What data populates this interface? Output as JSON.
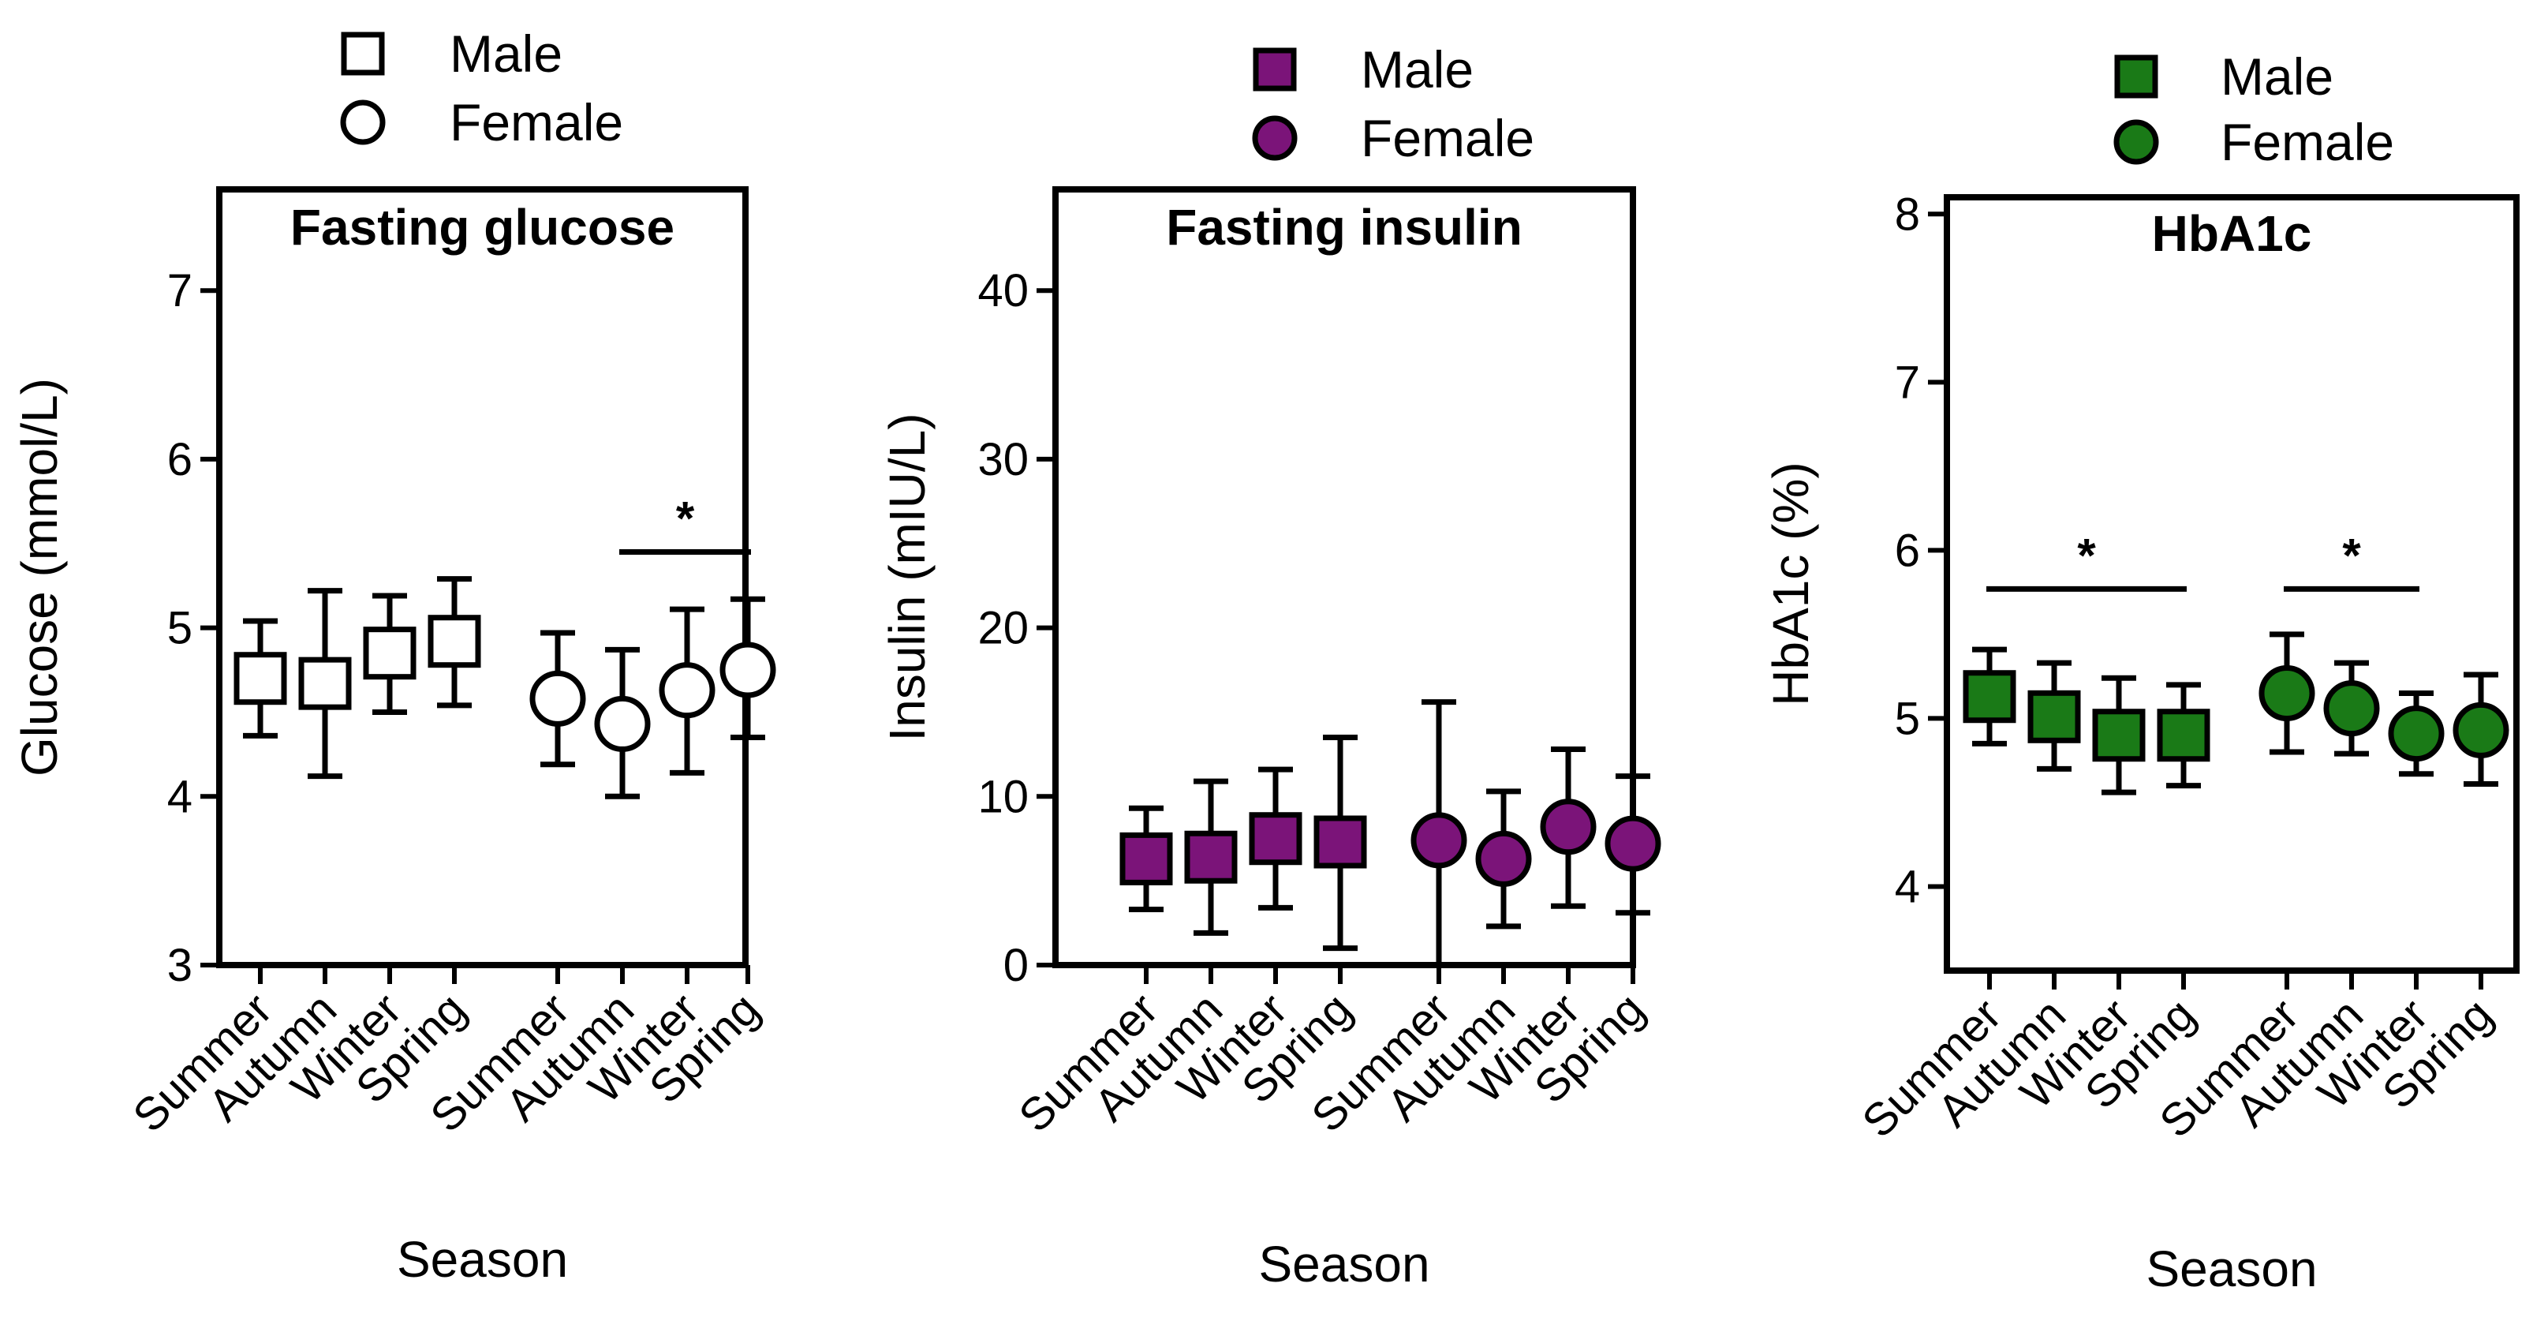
{
  "chart_data": [
    {
      "type": "scatter",
      "title": "Fasting glucose",
      "xlabel": "Season",
      "ylabel": "Glucose (mmol/L)",
      "ylim": [
        3,
        7.6
      ],
      "yticks": [
        3,
        4,
        5,
        6,
        7
      ],
      "colors": {
        "fill": "#ffffff",
        "stroke": "#000000"
      },
      "legend": {
        "position": "top",
        "entries": [
          "Male",
          "Female"
        ]
      },
      "categories": [
        "Summer",
        "Autumn",
        "Winter",
        "Spring",
        "Summer",
        "Autumn",
        "Winter",
        "Spring"
      ],
      "series": [
        {
          "name": "Male",
          "marker": "square",
          "mean": [
            4.7,
            4.67,
            4.85,
            4.92
          ],
          "lower": [
            4.36,
            4.12,
            4.5,
            4.54
          ],
          "upper": [
            5.04,
            5.22,
            5.19,
            5.29
          ]
        },
        {
          "name": "Female",
          "marker": "circle",
          "mean": [
            4.58,
            4.43,
            4.63,
            4.75
          ],
          "lower": [
            4.19,
            4.0,
            4.14,
            4.35
          ],
          "upper": [
            4.97,
            4.87,
            5.11,
            5.17
          ]
        }
      ],
      "significance": [
        {
          "label": "*",
          "from_index": 5,
          "to_index": 7,
          "y": 5.45
        }
      ]
    },
    {
      "type": "scatter",
      "title": "Fasting insulin",
      "xlabel": "Season",
      "ylabel": "Insulin (mIU/L)",
      "ylim": [
        0,
        46
      ],
      "yticks": [
        0,
        10,
        20,
        30,
        40
      ],
      "colors": {
        "fill": "#7b1479",
        "stroke": "#000000"
      },
      "legend": {
        "position": "top",
        "entries": [
          "Male",
          "Female"
        ]
      },
      "categories": [
        "Summer",
        "Autumn",
        "Winter",
        "Spring",
        "Summer",
        "Autumn",
        "Winter",
        "Spring"
      ],
      "series": [
        {
          "name": "Male",
          "marker": "square",
          "mean": [
            6.3,
            6.4,
            7.5,
            7.3
          ],
          "lower": [
            3.3,
            1.9,
            3.4,
            1.0
          ],
          "upper": [
            9.3,
            10.9,
            11.6,
            13.5
          ]
        },
        {
          "name": "Female",
          "marker": "circle",
          "mean": [
            7.4,
            6.3,
            8.2,
            7.2
          ],
          "lower": [
            0,
            2.3,
            3.5,
            3.1
          ],
          "upper": [
            15.6,
            10.3,
            12.8,
            11.2
          ]
        }
      ],
      "significance": []
    },
    {
      "type": "scatter",
      "title": "HbA1c",
      "xlabel": "Season",
      "ylabel": "HbA1c (%)",
      "ylim": [
        3.5,
        8.1
      ],
      "yticks": [
        4,
        5,
        6,
        7,
        8
      ],
      "colors": {
        "fill": "#1a7a17",
        "stroke": "#000000"
      },
      "legend": {
        "position": "top",
        "entries": [
          "Male",
          "Female"
        ]
      },
      "categories": [
        "Summer",
        "Autumn",
        "Winter",
        "Spring",
        "Summer",
        "Autumn",
        "Winter",
        "Spring"
      ],
      "series": [
        {
          "name": "Male",
          "marker": "square",
          "mean": [
            5.13,
            5.01,
            4.9,
            4.9
          ],
          "lower": [
            4.85,
            4.7,
            4.56,
            4.6
          ],
          "upper": [
            5.41,
            5.33,
            5.24,
            5.2
          ]
        },
        {
          "name": "Female",
          "marker": "circle",
          "mean": [
            5.15,
            5.06,
            4.91,
            4.93
          ],
          "lower": [
            4.8,
            4.79,
            4.67,
            4.61
          ],
          "upper": [
            5.5,
            5.33,
            5.15,
            5.26
          ]
        }
      ],
      "significance": [
        {
          "label": "*",
          "from_index": 0,
          "to_index": 3,
          "y": 5.77
        },
        {
          "label": "*",
          "from_index": 4,
          "to_index": 6,
          "y": 5.77
        }
      ]
    }
  ]
}
